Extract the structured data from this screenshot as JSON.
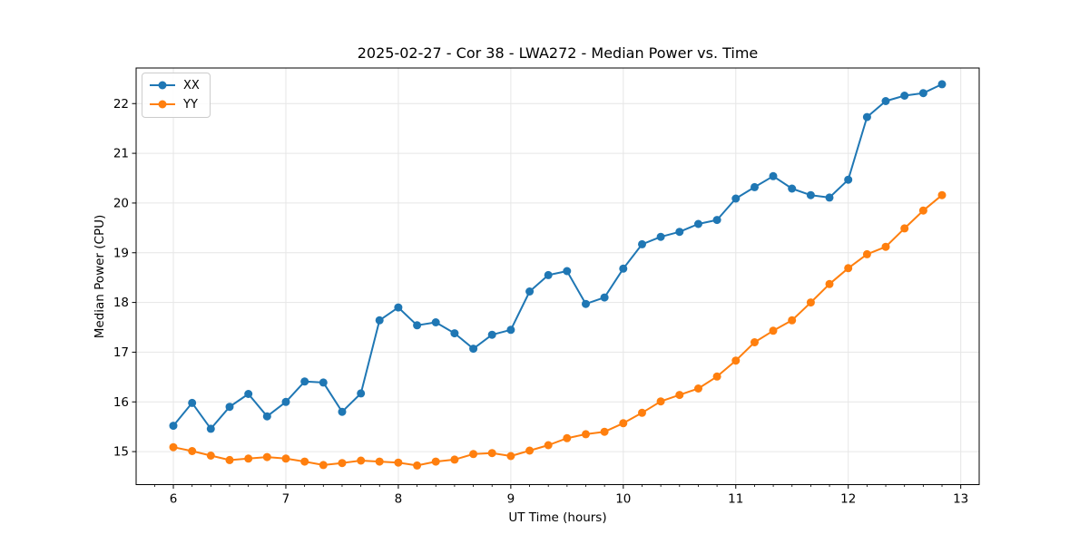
{
  "chart_data": {
    "type": "line",
    "title": "2025-02-27 - Cor 38 - LWA272 - Median Power vs. Time",
    "xlabel": "UT Time (hours)",
    "ylabel": "Median Power (CPU)",
    "xlim": [
      5.669,
      13.164
    ],
    "ylim": [
      14.336,
      22.716
    ],
    "xticks": [
      6,
      7,
      8,
      9,
      10,
      11,
      12,
      13
    ],
    "yticks": [
      15,
      16,
      17,
      18,
      19,
      20,
      21,
      22
    ],
    "x_minor_tick_step": 0.16667,
    "grid": true,
    "legend_position": "upper-left",
    "x": [
      6.0,
      6.167,
      6.333,
      6.5,
      6.667,
      6.833,
      7.0,
      7.167,
      7.333,
      7.5,
      7.667,
      7.833,
      8.0,
      8.167,
      8.333,
      8.5,
      8.667,
      8.833,
      9.0,
      9.167,
      9.333,
      9.5,
      9.667,
      9.833,
      10.0,
      10.167,
      10.333,
      10.5,
      10.667,
      10.833,
      11.0,
      11.167,
      11.333,
      11.5,
      11.667,
      11.833,
      12.0,
      12.167,
      12.333,
      12.5,
      12.667,
      12.833
    ],
    "series": [
      {
        "name": "XX",
        "color": "#1f77b4",
        "values": [
          15.52,
          15.98,
          15.46,
          15.9,
          16.16,
          15.71,
          16.0,
          16.41,
          16.39,
          15.8,
          16.17,
          17.64,
          17.9,
          17.54,
          17.6,
          17.38,
          17.07,
          17.35,
          17.45,
          18.22,
          18.55,
          18.63,
          17.97,
          18.1,
          18.68,
          19.17,
          19.32,
          19.42,
          19.58,
          19.66,
          20.09,
          20.32,
          20.54,
          20.29,
          20.16,
          20.11,
          20.47,
          21.73,
          22.05,
          22.16,
          22.21,
          22.39
        ]
      },
      {
        "name": "YY",
        "color": "#ff7f0e",
        "values": [
          15.09,
          15.01,
          14.92,
          14.83,
          14.86,
          14.89,
          14.86,
          14.8,
          14.73,
          14.77,
          14.82,
          14.8,
          14.78,
          14.72,
          14.8,
          14.84,
          14.95,
          14.97,
          14.91,
          15.02,
          15.13,
          15.27,
          15.35,
          15.4,
          15.57,
          15.78,
          16.01,
          16.14,
          16.27,
          16.51,
          16.83,
          17.2,
          17.43,
          17.64,
          18.0,
          18.37,
          18.69,
          18.97,
          19.12,
          19.49,
          19.85,
          20.16
        ]
      }
    ],
    "style": {
      "grid_color": "#e6e6e6",
      "spine_color": "#000000",
      "tick_color": "#000000",
      "background": "#ffffff"
    }
  }
}
